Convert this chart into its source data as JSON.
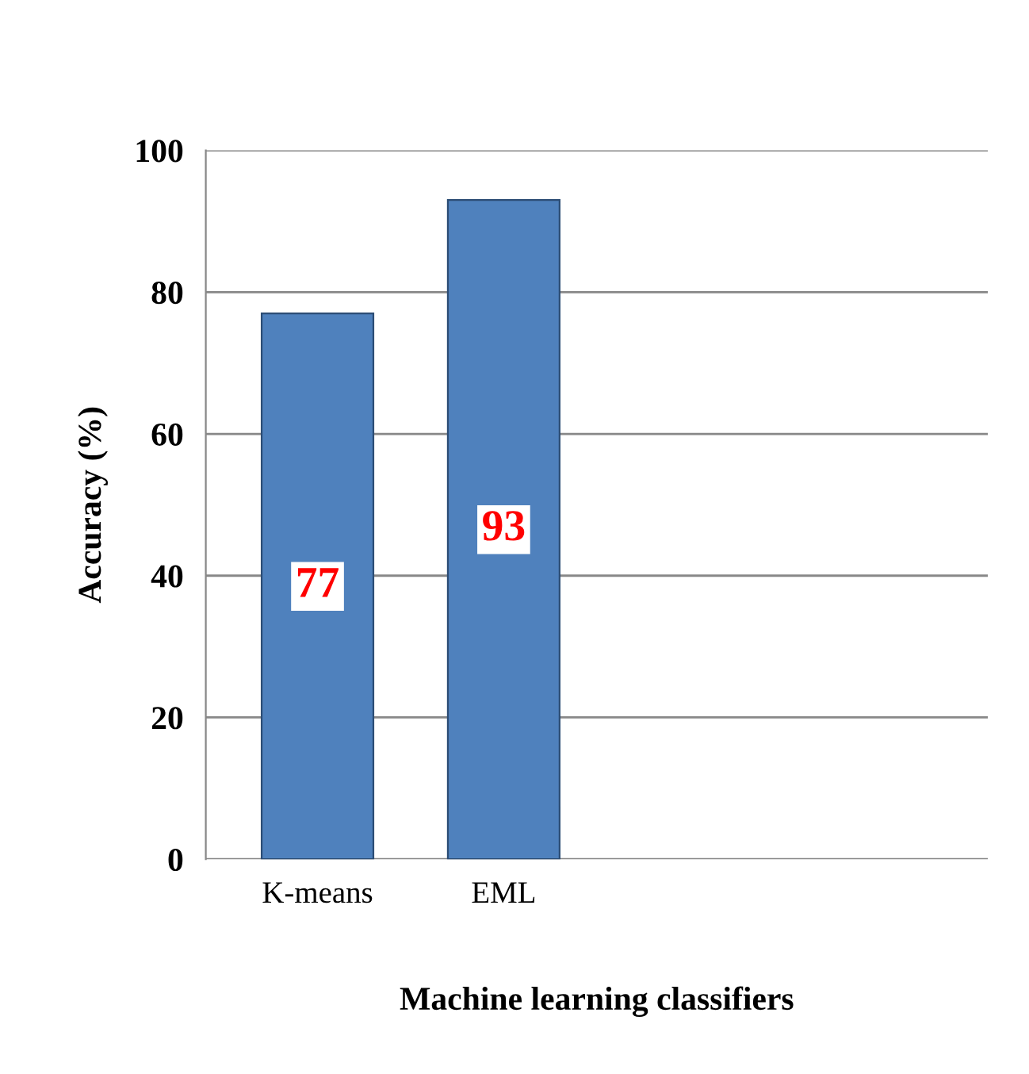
{
  "chart_data": {
    "type": "bar",
    "xlabel": "Machine learning classifiers",
    "ylabel": "Accuracy (%)",
    "categories": [
      "K-means",
      "EML"
    ],
    "values": [
      77,
      93
    ],
    "color": "#4f81bd",
    "ylim": [
      0,
      100
    ],
    "yticks": [
      0,
      20,
      40,
      60,
      80,
      100
    ],
    "grid": "y",
    "data_labels": true
  }
}
